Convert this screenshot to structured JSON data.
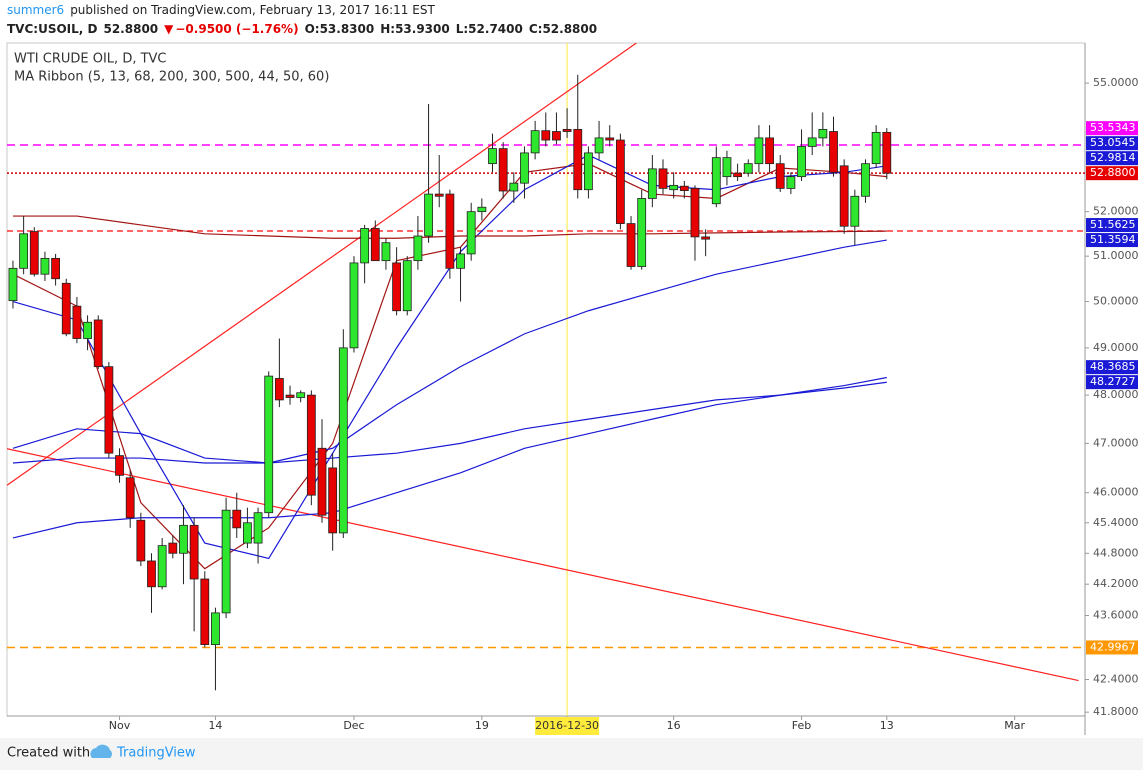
{
  "header": {
    "author": "summer6",
    "published": "published on TradingView.com, February 13, 2017 16:11 EST",
    "symbol": "TVC:USOIL, D",
    "price": "52.8800",
    "change": "−0.9500 (−1.76%)",
    "ohlc": [
      "O:53.8300",
      "H:53.9300",
      "L:52.7400",
      "C:52.8800"
    ]
  },
  "chart_data": {
    "type": "candlestick",
    "title": "WTI CRUDE OIL, D, TVC",
    "subtitle": "MA Ribbon (5, 13, 68, 200, 300, 500, 44, 50, 60)",
    "log": true,
    "xlim": [
      -0.56,
      100.6
    ],
    "ylim": [
      41.73,
      55.97
    ],
    "xticks": [
      {
        "value": 10,
        "label": "Nov"
      },
      {
        "value": 19,
        "label": "14"
      },
      {
        "value": 32,
        "label": "Dec"
      },
      {
        "value": 44,
        "label": "19"
      },
      {
        "value": 52,
        "label": "2016-12-30",
        "highlight": "#ffeb3b"
      },
      {
        "value": 62,
        "label": "16"
      },
      {
        "value": 74,
        "label": "Feb"
      },
      {
        "value": 82,
        "label": "13"
      },
      {
        "value": 94,
        "label": "Mar"
      }
    ],
    "yticks": [
      {
        "value": 41.8,
        "label": "41.8000"
      },
      {
        "value": 42.4,
        "label": "42.4000"
      },
      {
        "value": 43.6,
        "label": "43.6000"
      },
      {
        "value": 44.2,
        "label": "44.2000"
      },
      {
        "value": 44.8,
        "label": "44.8000"
      },
      {
        "value": 45.4,
        "label": "45.4000"
      },
      {
        "value": 46,
        "label": "46.0000"
      },
      {
        "value": 47,
        "label": "47.0000"
      },
      {
        "value": 48,
        "label": "48.0000"
      },
      {
        "value": 49,
        "label": "49.0000"
      },
      {
        "value": 50,
        "label": "50.0000"
      },
      {
        "value": 51,
        "label": "51.0000"
      },
      {
        "value": 52,
        "label": "52.0000"
      },
      {
        "value": 55,
        "label": "55.0000"
      }
    ],
    "up_color": "#2ee62e",
    "down_color": "#e60000",
    "open": [
      50.02,
      50.73,
      51.55,
      50.6,
      50.95,
      50.4,
      49.9,
      49.2,
      49.6,
      48.6,
      46.75,
      46.3,
      45.45,
      44.65,
      44.15,
      45.0,
      44.8,
      45.35,
      44.3,
      43.05,
      43.65,
      45.65,
      45.0,
      45.0,
      45.6,
      48.35,
      48.0,
      47.95,
      48.0,
      46.9,
      46.5,
      45.2,
      49.0,
      50.85,
      51.62,
      50.9,
      50.85,
      49.8,
      50.9,
      51.45,
      52.4,
      52.4,
      50.73,
      51.05,
      52.0,
      53.1,
      53.45,
      52.47,
      52.65,
      53.35,
      53.87,
      53.85,
      53.9,
      53.9,
      52.5,
      53.35,
      53.7,
      53.65,
      51.73,
      50.77,
      52.3,
      52.98,
      52.5,
      52.58,
      52.53,
      51.43,
      52.18,
      52.8,
      52.88,
      52.88,
      53.1,
      53.7,
      53.1,
      52.53,
      52.8,
      53.5,
      53.7,
      53.85,
      53.05,
      51.67,
      52.35,
      53.1,
      53.83
    ],
    "high": [
      50.9,
      51.9,
      51.65,
      51.1,
      51.05,
      50.5,
      50.1,
      49.7,
      49.7,
      48.7,
      46.9,
      46.45,
      45.6,
      44.8,
      45.1,
      45.15,
      45.75,
      45.5,
      44.45,
      43.75,
      45.9,
      46.0,
      45.7,
      45.7,
      48.5,
      49.2,
      48.2,
      48.1,
      48.1,
      47.5,
      46.8,
      49.4,
      51.0,
      51.7,
      51.8,
      51.4,
      51.2,
      51.0,
      51.9,
      54.5,
      53.3,
      52.5,
      51.2,
      52.2,
      52.3,
      53.8,
      53.6,
      52.9,
      53.5,
      54.1,
      54.3,
      54.3,
      54.4,
      55.2,
      53.5,
      54.1,
      54.0,
      53.8,
      51.9,
      52.5,
      53.3,
      53.2,
      52.9,
      52.7,
      52.6,
      51.6,
      53.5,
      53.4,
      53.1,
      53.2,
      54.0,
      54.0,
      53.3,
      52.9,
      53.9,
      54.3,
      54.3,
      54.2,
      53.2,
      52.5,
      53.2,
      54.0,
      53.93
    ],
    "low": [
      49.85,
      50.6,
      50.55,
      50.45,
      50.35,
      49.25,
      49.1,
      48.95,
      48.55,
      46.7,
      46.2,
      45.3,
      44.55,
      43.65,
      44.1,
      44.7,
      44.2,
      43.3,
      43.0,
      42.2,
      43.55,
      45.1,
      44.9,
      44.6,
      45.5,
      47.75,
      47.8,
      47.85,
      45.75,
      45.4,
      44.85,
      45.1,
      48.9,
      50.4,
      50.9,
      50.7,
      49.7,
      49.7,
      50.7,
      51.3,
      52.1,
      50.5,
      50.0,
      50.9,
      51.8,
      52.9,
      52.3,
      52.2,
      52.3,
      53.2,
      53.5,
      53.55,
      53.7,
      52.3,
      52.3,
      53.2,
      53.5,
      51.6,
      50.7,
      50.7,
      52.1,
      52.4,
      52.3,
      52.3,
      50.9,
      51.0,
      52.1,
      52.6,
      52.7,
      52.8,
      52.9,
      52.9,
      52.45,
      52.4,
      52.7,
      53.3,
      53.5,
      52.8,
      51.5,
      51.25,
      52.2,
      53.0,
      52.74
    ],
    "close": [
      50.73,
      51.5,
      50.6,
      50.95,
      50.5,
      49.3,
      49.2,
      49.55,
      48.6,
      46.8,
      46.35,
      45.5,
      44.65,
      44.15,
      44.95,
      44.8,
      45.35,
      44.3,
      43.05,
      43.65,
      45.65,
      45.3,
      45.4,
      45.6,
      48.4,
      47.9,
      47.95,
      48.05,
      45.95,
      45.55,
      45.2,
      49.0,
      50.85,
      51.62,
      50.9,
      51.3,
      49.8,
      50.9,
      51.45,
      52.4,
      52.35,
      50.73,
      51.05,
      52.0,
      52.1,
      53.45,
      52.47,
      52.65,
      53.35,
      53.87,
      53.65,
      53.65,
      53.85,
      52.5,
      53.35,
      53.7,
      53.65,
      51.73,
      50.77,
      52.3,
      52.98,
      52.53,
      52.6,
      52.48,
      51.43,
      51.38,
      53.24,
      53.24,
      52.8,
      53.1,
      53.7,
      53.1,
      52.53,
      52.8,
      53.5,
      53.7,
      53.9,
      52.9,
      51.67,
      52.35,
      53.1,
      53.83,
      52.88
    ],
    "overlays": [
      {
        "color": "#a31515",
        "x": [
          0,
          6,
          12,
          18,
          24,
          30,
          36,
          42,
          48,
          54,
          60,
          66,
          72,
          78,
          82
        ],
        "values": [
          50.6,
          49.9,
          45.8,
          44.5,
          45.3,
          47.0,
          50.9,
          51.2,
          52.9,
          53.1,
          52.4,
          52.3,
          53.0,
          52.9,
          52.8
        ]
      },
      {
        "color": "#1a1ad6",
        "x": [
          0,
          6,
          12,
          18,
          24,
          30,
          36,
          42,
          48,
          54,
          60,
          66,
          72,
          78,
          82
        ],
        "values": [
          50.0,
          49.6,
          47.2,
          45.0,
          44.7,
          46.8,
          49.0,
          51.1,
          52.5,
          53.3,
          52.6,
          52.5,
          52.8,
          52.9,
          53.05
        ]
      },
      {
        "color": "#a31515",
        "x": [
          0,
          6,
          12,
          18,
          24,
          30,
          36,
          42,
          48,
          54,
          60,
          66,
          72,
          78,
          82
        ],
        "values": [
          51.9,
          51.9,
          51.7,
          51.5,
          51.45,
          51.4,
          51.4,
          51.45,
          51.45,
          51.5,
          51.5,
          51.52,
          51.54,
          51.55,
          51.56
        ]
      },
      {
        "color": "#1a1ad6",
        "x": [
          0,
          6,
          12,
          18,
          24,
          30,
          36,
          42,
          48,
          54,
          60,
          66,
          72,
          78,
          82
        ],
        "values": [
          46.9,
          47.3,
          47.2,
          46.7,
          46.6,
          46.9,
          47.8,
          48.6,
          49.3,
          49.8,
          50.2,
          50.6,
          50.9,
          51.2,
          51.36
        ]
      },
      {
        "color": "#1a1ad6",
        "x": [
          0,
          6,
          12,
          18,
          24,
          30,
          36,
          42,
          48,
          54,
          60,
          66,
          72,
          78,
          82
        ],
        "values": [
          46.6,
          46.7,
          46.7,
          46.6,
          46.6,
          46.7,
          46.8,
          47.0,
          47.3,
          47.5,
          47.7,
          47.9,
          48.0,
          48.15,
          48.27
        ]
      },
      {
        "color": "#1a1ad6",
        "x": [
          0,
          6,
          12,
          18,
          24,
          30,
          36,
          42,
          48,
          54,
          60,
          66,
          72,
          78,
          82
        ],
        "values": [
          45.1,
          45.4,
          45.5,
          45.5,
          45.5,
          45.6,
          46.0,
          46.4,
          46.9,
          47.2,
          47.5,
          47.8,
          48.0,
          48.2,
          48.37
        ]
      }
    ],
    "hlines": [
      {
        "value": 53.5343,
        "color": "#ff00ff",
        "dash": "8,5"
      },
      {
        "value": 52.88,
        "color": "#cc0000",
        "dash": "2,2"
      },
      {
        "value": 51.5625,
        "color": "#ff3333",
        "dash": "6,4"
      },
      {
        "value": 42.9967,
        "color": "#ff9800",
        "dash": "8,5"
      }
    ],
    "trendlines": [
      {
        "color": "#ff2020",
        "x": [
          -0.56,
          58.5
        ],
        "values": [
          46.15,
          55.97
        ]
      },
      {
        "color": "#ff2020",
        "x": [
          -0.56,
          100.0
        ],
        "values": [
          46.89,
          42.38
        ]
      }
    ],
    "vlines": [
      {
        "x": 52,
        "color": "#ffeb3b"
      }
    ],
    "price_labels": [
      {
        "value": 53.5343,
        "color": "#ff00ff"
      },
      {
        "value": 53.0545,
        "color": "#1a1ad6"
      },
      {
        "value": 52.9814,
        "color": "#1a1ad6"
      },
      {
        "value": 52.88,
        "label": "52.8800",
        "color": "#e60000"
      },
      {
        "value": 51.5625,
        "color": "#1a1ad6"
      },
      {
        "value": 51.3594,
        "color": "#1a1ad6"
      },
      {
        "value": 48.3685,
        "color": "#1a1ad6"
      },
      {
        "value": 48.2727,
        "color": "#1a1ad6"
      },
      {
        "value": 42.9967,
        "color": "#ff9800"
      }
    ]
  },
  "footer": {
    "text": "Created with",
    "brand": "TradingView"
  }
}
